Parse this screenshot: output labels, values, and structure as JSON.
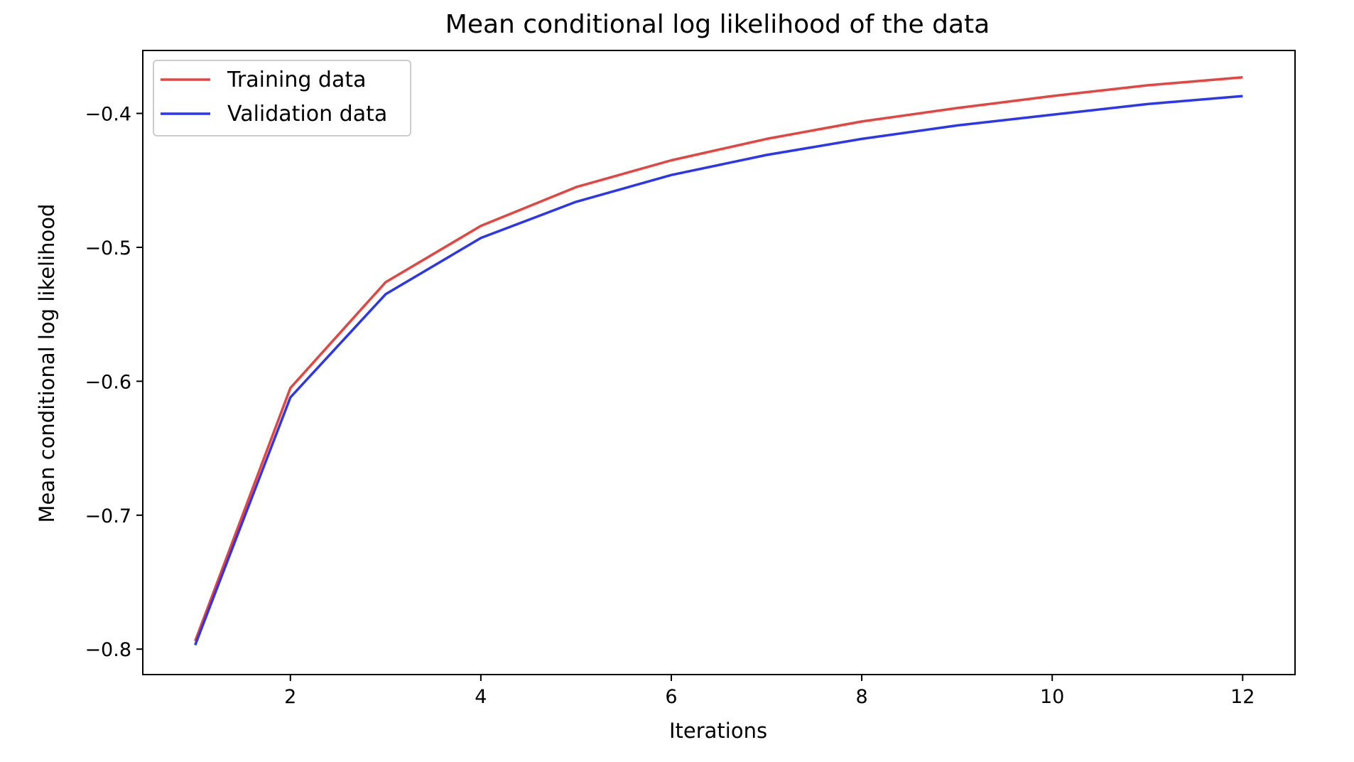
{
  "chart_data": {
    "type": "line",
    "title": "Mean conditional log likelihood of the data",
    "xlabel": "Iterations",
    "ylabel": "Mean conditional log likelihood",
    "xlim": [
      0.45,
      12.55
    ],
    "ylim": [
      -0.819,
      -0.353
    ],
    "x_ticks": [
      2,
      4,
      6,
      8,
      10,
      12
    ],
    "x_tick_labels": [
      "2",
      "4",
      "6",
      "8",
      "10",
      "12"
    ],
    "y_ticks": [
      -0.8,
      -0.7,
      -0.6,
      -0.5,
      -0.4
    ],
    "y_tick_labels": [
      "−0.8",
      "−0.7",
      "−0.6",
      "−0.5",
      "−0.4"
    ],
    "grid": false,
    "legend_position": "top-left",
    "x": [
      1,
      2,
      3,
      4,
      5,
      6,
      7,
      8,
      9,
      10,
      11,
      12
    ],
    "series": [
      {
        "name": "Training data",
        "color": "#e8433e",
        "values": [
          -0.794,
          -0.605,
          -0.526,
          -0.484,
          -0.455,
          -0.435,
          -0.419,
          -0.406,
          -0.396,
          -0.387,
          -0.379,
          -0.373
        ]
      },
      {
        "name": "Validation data",
        "color": "#2b35f5",
        "values": [
          -0.797,
          -0.612,
          -0.535,
          -0.493,
          -0.466,
          -0.446,
          -0.431,
          -0.419,
          -0.409,
          -0.401,
          -0.393,
          -0.387
        ]
      }
    ]
  }
}
